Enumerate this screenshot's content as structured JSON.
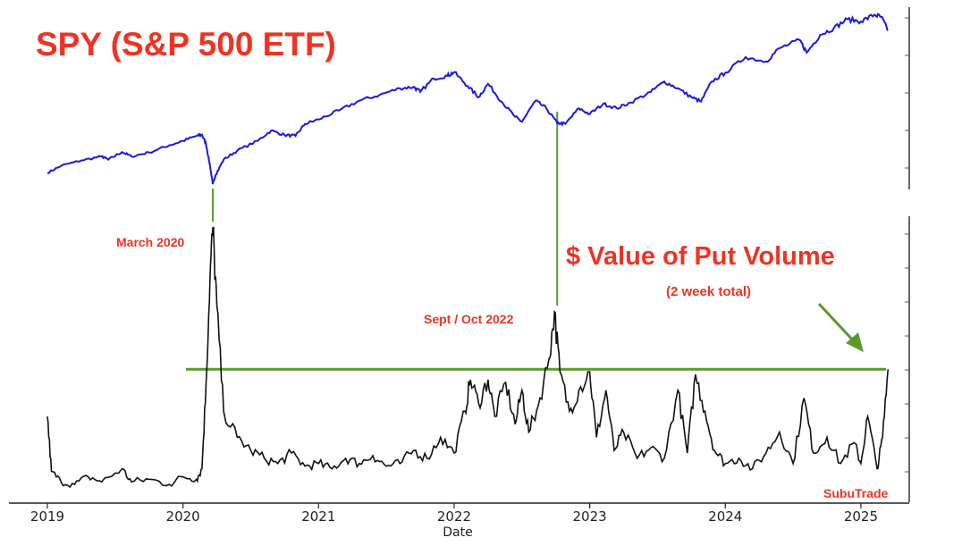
{
  "chart_data": {
    "type": "line",
    "title": "SPY (S&P 500 ETF)",
    "xlabel": "Date",
    "x_ticks": [
      "2019",
      "2020",
      "2021",
      "2022",
      "2023",
      "2024",
      "2025"
    ],
    "xlim": [
      2019.0,
      2025.35
    ],
    "grid": false,
    "series": [
      {
        "name": "SPY (S&P 500 ETF)",
        "color": "#1a1adf",
        "points": [
          [
            2019.0,
            250
          ],
          [
            2019.1,
            266
          ],
          [
            2019.25,
            278
          ],
          [
            2019.4,
            287
          ],
          [
            2019.45,
            280
          ],
          [
            2019.55,
            297
          ],
          [
            2019.62,
            287
          ],
          [
            2019.75,
            296
          ],
          [
            2019.9,
            312
          ],
          [
            2020.0,
            322
          ],
          [
            2020.1,
            333
          ],
          [
            2020.14,
            336
          ],
          [
            2020.17,
            315
          ],
          [
            2020.2,
            265
          ],
          [
            2020.22,
            225
          ],
          [
            2020.24,
            245
          ],
          [
            2020.3,
            280
          ],
          [
            2020.4,
            300
          ],
          [
            2020.55,
            322
          ],
          [
            2020.65,
            345
          ],
          [
            2020.75,
            335
          ],
          [
            2020.83,
            333
          ],
          [
            2020.9,
            360
          ],
          [
            2021.0,
            370
          ],
          [
            2021.15,
            390
          ],
          [
            2021.3,
            412
          ],
          [
            2021.45,
            425
          ],
          [
            2021.6,
            440
          ],
          [
            2021.7,
            443
          ],
          [
            2021.75,
            432
          ],
          [
            2021.85,
            462
          ],
          [
            2021.95,
            468
          ],
          [
            2022.0,
            476
          ],
          [
            2022.1,
            445
          ],
          [
            2022.18,
            420
          ],
          [
            2022.25,
            450
          ],
          [
            2022.35,
            410
          ],
          [
            2022.45,
            376
          ],
          [
            2022.5,
            365
          ],
          [
            2022.6,
            412
          ],
          [
            2022.68,
            395
          ],
          [
            2022.76,
            362
          ],
          [
            2022.82,
            360
          ],
          [
            2022.92,
            395
          ],
          [
            2023.0,
            382
          ],
          [
            2023.1,
            405
          ],
          [
            2023.2,
            395
          ],
          [
            2023.3,
            408
          ],
          [
            2023.45,
            432
          ],
          [
            2023.55,
            455
          ],
          [
            2023.65,
            440
          ],
          [
            2023.75,
            420
          ],
          [
            2023.82,
            410
          ],
          [
            2023.9,
            455
          ],
          [
            2024.0,
            475
          ],
          [
            2024.15,
            510
          ],
          [
            2024.3,
            500
          ],
          [
            2024.4,
            530
          ],
          [
            2024.55,
            548
          ],
          [
            2024.6,
            520
          ],
          [
            2024.7,
            560
          ],
          [
            2024.8,
            575
          ],
          [
            2024.9,
            595
          ],
          [
            2025.0,
            590
          ],
          [
            2025.1,
            605
          ],
          [
            2025.15,
            600
          ],
          [
            2025.2,
            570
          ]
        ]
      },
      {
        "name": "$ Value of Put Volume",
        "color": "#111111",
        "points": [
          [
            2019.0,
            0.28
          ],
          [
            2019.03,
            0.07
          ],
          [
            2019.1,
            0.03
          ],
          [
            2019.2,
            0.02
          ],
          [
            2019.3,
            0.05
          ],
          [
            2019.4,
            0.03
          ],
          [
            2019.55,
            0.08
          ],
          [
            2019.62,
            0.03
          ],
          [
            2019.75,
            0.04
          ],
          [
            2019.9,
            0.02
          ],
          [
            2020.0,
            0.05
          ],
          [
            2020.1,
            0.04
          ],
          [
            2020.14,
            0.08
          ],
          [
            2020.17,
            0.4
          ],
          [
            2020.2,
            0.82
          ],
          [
            2020.22,
            1.0
          ],
          [
            2020.25,
            0.7
          ],
          [
            2020.3,
            0.3
          ],
          [
            2020.4,
            0.2
          ],
          [
            2020.5,
            0.15
          ],
          [
            2020.6,
            0.12
          ],
          [
            2020.7,
            0.1
          ],
          [
            2020.8,
            0.14
          ],
          [
            2020.9,
            0.09
          ],
          [
            2021.0,
            0.1
          ],
          [
            2021.1,
            0.08
          ],
          [
            2021.2,
            0.12
          ],
          [
            2021.3,
            0.1
          ],
          [
            2021.4,
            0.13
          ],
          [
            2021.5,
            0.09
          ],
          [
            2021.6,
            0.1
          ],
          [
            2021.7,
            0.15
          ],
          [
            2021.8,
            0.12
          ],
          [
            2021.9,
            0.2
          ],
          [
            2022.0,
            0.14
          ],
          [
            2022.08,
            0.3
          ],
          [
            2022.12,
            0.42
          ],
          [
            2022.18,
            0.33
          ],
          [
            2022.25,
            0.42
          ],
          [
            2022.3,
            0.28
          ],
          [
            2022.38,
            0.41
          ],
          [
            2022.45,
            0.25
          ],
          [
            2022.5,
            0.38
          ],
          [
            2022.55,
            0.22
          ],
          [
            2022.62,
            0.32
          ],
          [
            2022.7,
            0.5
          ],
          [
            2022.74,
            0.68
          ],
          [
            2022.78,
            0.45
          ],
          [
            2022.85,
            0.3
          ],
          [
            2022.92,
            0.38
          ],
          [
            2023.0,
            0.45
          ],
          [
            2023.05,
            0.2
          ],
          [
            2023.12,
            0.38
          ],
          [
            2023.18,
            0.15
          ],
          [
            2023.25,
            0.22
          ],
          [
            2023.35,
            0.12
          ],
          [
            2023.45,
            0.16
          ],
          [
            2023.55,
            0.12
          ],
          [
            2023.65,
            0.38
          ],
          [
            2023.72,
            0.14
          ],
          [
            2023.78,
            0.44
          ],
          [
            2023.85,
            0.3
          ],
          [
            2023.92,
            0.15
          ],
          [
            2024.0,
            0.1
          ],
          [
            2024.1,
            0.12
          ],
          [
            2024.2,
            0.08
          ],
          [
            2024.3,
            0.14
          ],
          [
            2024.4,
            0.22
          ],
          [
            2024.5,
            0.1
          ],
          [
            2024.58,
            0.35
          ],
          [
            2024.65,
            0.14
          ],
          [
            2024.75,
            0.2
          ],
          [
            2024.85,
            0.1
          ],
          [
            2024.95,
            0.18
          ],
          [
            2025.0,
            0.1
          ],
          [
            2025.05,
            0.28
          ],
          [
            2025.12,
            0.08
          ],
          [
            2025.16,
            0.2
          ],
          [
            2025.2,
            0.46
          ]
        ]
      }
    ],
    "threshold": {
      "value": 0.46,
      "color": "#5a9a2a"
    },
    "connectors": [
      {
        "x": 2020.22,
        "color": "#5a9a2a"
      },
      {
        "x": 2022.76,
        "color": "#5a9a2a"
      }
    ],
    "annotations": {
      "march_2020": "March 2020",
      "sept_oct_2022": "Sept / Oct 2022",
      "put_volume_title": "$ Value of Put Volume",
      "put_volume_sub": "(2 week total)",
      "watermark": "SubuTrade"
    }
  }
}
